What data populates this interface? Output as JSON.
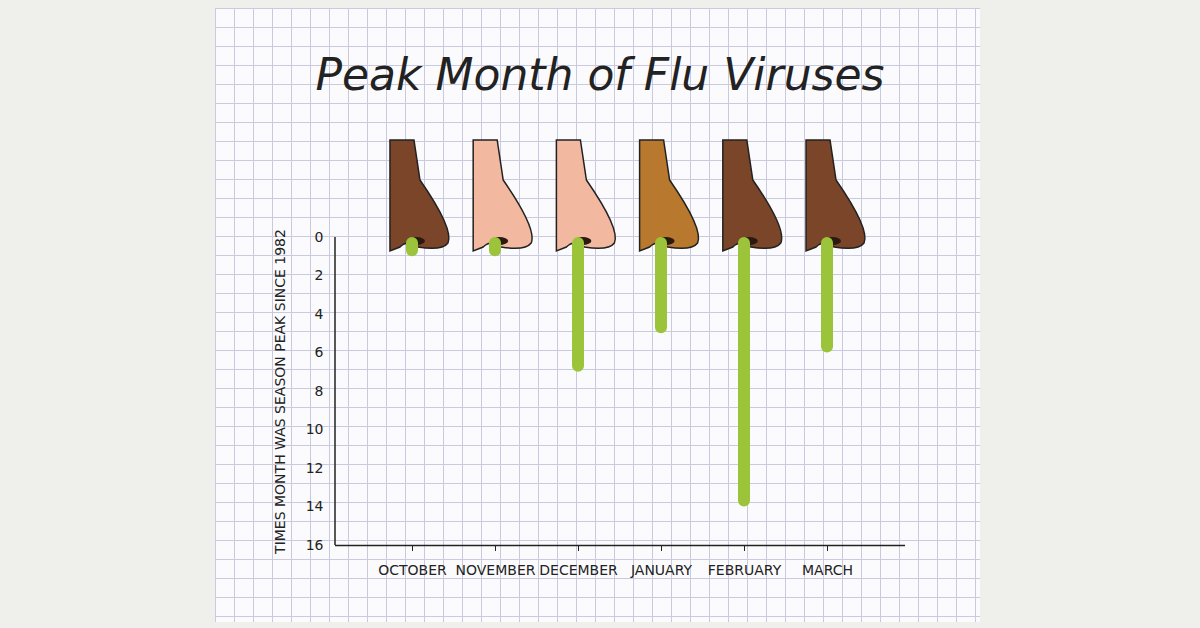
{
  "chart_data": {
    "type": "bar",
    "title": "Peak Month of Flu Viruses",
    "categories": [
      "OCTOBER",
      "NOVEMBER",
      "DECEMBER",
      "JANUARY",
      "FEBRUARY",
      "MARCH"
    ],
    "values": [
      1,
      1,
      7,
      5,
      14,
      6
    ],
    "color": "#9cc43a",
    "y_label": "TIMES MONTH WAS SEASON PEAK SINCE 1982",
    "ylim": [
      0,
      16
    ],
    "yticks": [
      0,
      2,
      4,
      6,
      8,
      10,
      12,
      14,
      16
    ]
  }
}
